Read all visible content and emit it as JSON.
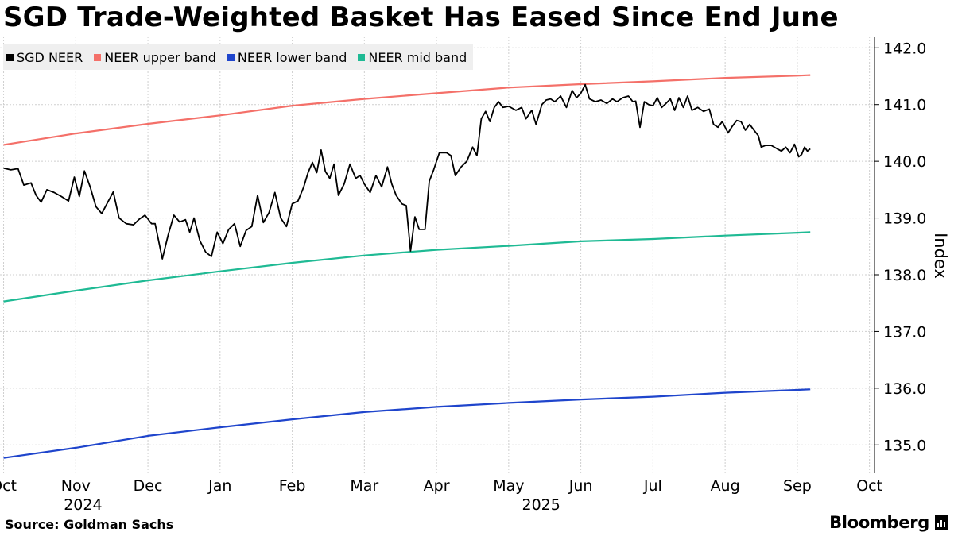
{
  "header": {
    "title": "SGD Trade-Weighted Basket Has Eased Since End June"
  },
  "footer": {
    "source": "Source: Goldman Sachs",
    "brand": "Bloomberg"
  },
  "chart_data": {
    "type": "line",
    "title": "SGD Trade-Weighted Basket Has Eased Since End June",
    "ylabel": "Index",
    "xlabel": "",
    "ylim": [
      134.5,
      142.2
    ],
    "yticks": [
      "135.0",
      "136.0",
      "137.0",
      "138.0",
      "139.0",
      "140.0",
      "141.0",
      "142.0"
    ],
    "x_range_months": [
      -0.05,
      12.07
    ],
    "xticks": [
      "Oct",
      "Nov",
      "Dec",
      "Jan",
      "Feb",
      "Mar",
      "Apr",
      "May",
      "Jun",
      "Jul",
      "Aug",
      "Sep",
      "Oct"
    ],
    "year_labels": [
      {
        "label": "2024",
        "month": 1.1
      },
      {
        "label": "2025",
        "month": 7.45
      }
    ],
    "grid": true,
    "legend_position": "top-left",
    "series": [
      {
        "name": "SGD NEER",
        "color": "#000000",
        "points": [
          [
            0.0,
            139.88
          ],
          [
            0.1,
            139.85
          ],
          [
            0.2,
            139.87
          ],
          [
            0.28,
            139.58
          ],
          [
            0.38,
            139.62
          ],
          [
            0.45,
            139.4
          ],
          [
            0.52,
            139.28
          ],
          [
            0.6,
            139.5
          ],
          [
            0.7,
            139.45
          ],
          [
            0.8,
            139.38
          ],
          [
            0.9,
            139.3
          ],
          [
            0.98,
            139.72
          ],
          [
            1.05,
            139.38
          ],
          [
            1.12,
            139.83
          ],
          [
            1.2,
            139.55
          ],
          [
            1.28,
            139.2
          ],
          [
            1.36,
            139.08
          ],
          [
            1.44,
            139.27
          ],
          [
            1.52,
            139.46
          ],
          [
            1.6,
            139.0
          ],
          [
            1.7,
            138.9
          ],
          [
            1.8,
            138.88
          ],
          [
            1.88,
            138.98
          ],
          [
            1.96,
            139.05
          ],
          [
            2.05,
            138.9
          ],
          [
            2.1,
            138.9
          ],
          [
            2.2,
            138.28
          ],
          [
            2.28,
            138.7
          ],
          [
            2.36,
            139.05
          ],
          [
            2.44,
            138.93
          ],
          [
            2.52,
            138.97
          ],
          [
            2.58,
            138.75
          ],
          [
            2.64,
            139.0
          ],
          [
            2.72,
            138.6
          ],
          [
            2.8,
            138.4
          ],
          [
            2.88,
            138.32
          ],
          [
            2.96,
            138.75
          ],
          [
            3.04,
            138.55
          ],
          [
            3.12,
            138.8
          ],
          [
            3.2,
            138.9
          ],
          [
            3.28,
            138.5
          ],
          [
            3.36,
            138.78
          ],
          [
            3.44,
            138.85
          ],
          [
            3.52,
            139.4
          ],
          [
            3.6,
            138.92
          ],
          [
            3.68,
            139.1
          ],
          [
            3.76,
            139.45
          ],
          [
            3.84,
            139.0
          ],
          [
            3.92,
            138.85
          ],
          [
            4.0,
            139.25
          ],
          [
            4.08,
            139.3
          ],
          [
            4.16,
            139.55
          ],
          [
            4.22,
            139.8
          ],
          [
            4.28,
            139.98
          ],
          [
            4.34,
            139.8
          ],
          [
            4.4,
            140.2
          ],
          [
            4.46,
            139.82
          ],
          [
            4.52,
            139.7
          ],
          [
            4.58,
            139.95
          ],
          [
            4.64,
            139.4
          ],
          [
            4.72,
            139.6
          ],
          [
            4.8,
            139.95
          ],
          [
            4.88,
            139.7
          ],
          [
            4.94,
            139.75
          ],
          [
            5.0,
            139.6
          ],
          [
            5.08,
            139.45
          ],
          [
            5.16,
            139.75
          ],
          [
            5.24,
            139.55
          ],
          [
            5.32,
            139.9
          ],
          [
            5.38,
            139.6
          ],
          [
            5.44,
            139.4
          ],
          [
            5.52,
            139.25
          ],
          [
            5.58,
            139.22
          ],
          [
            5.64,
            138.42
          ],
          [
            5.7,
            139.02
          ],
          [
            5.76,
            138.8
          ],
          [
            5.84,
            138.8
          ],
          [
            5.9,
            139.65
          ],
          [
            5.96,
            139.85
          ],
          [
            6.04,
            140.15
          ],
          [
            6.14,
            140.15
          ],
          [
            6.2,
            140.1
          ],
          [
            6.26,
            139.75
          ],
          [
            6.34,
            139.9
          ],
          [
            6.42,
            140.0
          ],
          [
            6.5,
            140.25
          ],
          [
            6.56,
            140.1
          ],
          [
            6.62,
            140.75
          ],
          [
            6.68,
            140.88
          ],
          [
            6.74,
            140.7
          ],
          [
            6.8,
            140.95
          ],
          [
            6.86,
            141.05
          ],
          [
            6.92,
            140.95
          ],
          [
            7.0,
            140.97
          ],
          [
            7.1,
            140.9
          ],
          [
            7.18,
            140.95
          ],
          [
            7.24,
            140.75
          ],
          [
            7.32,
            140.9
          ],
          [
            7.38,
            140.65
          ],
          [
            7.46,
            141.0
          ],
          [
            7.52,
            141.08
          ],
          [
            7.58,
            141.1
          ],
          [
            7.64,
            141.05
          ],
          [
            7.72,
            141.15
          ],
          [
            7.8,
            140.95
          ],
          [
            7.88,
            141.25
          ],
          [
            7.94,
            141.12
          ],
          [
            8.0,
            141.2
          ],
          [
            8.06,
            141.35
          ],
          [
            8.12,
            141.1
          ],
          [
            8.2,
            141.05
          ],
          [
            8.28,
            141.08
          ],
          [
            8.36,
            141.02
          ],
          [
            8.44,
            141.1
          ],
          [
            8.5,
            141.05
          ],
          [
            8.58,
            141.12
          ],
          [
            8.66,
            141.15
          ],
          [
            8.72,
            141.05
          ],
          [
            8.76,
            141.06
          ],
          [
            8.82,
            140.6
          ],
          [
            8.88,
            141.05
          ],
          [
            8.94,
            141.0
          ],
          [
            9.0,
            140.98
          ],
          [
            9.06,
            141.12
          ],
          [
            9.12,
            140.95
          ],
          [
            9.18,
            141.02
          ],
          [
            9.24,
            141.1
          ],
          [
            9.3,
            140.9
          ],
          [
            9.36,
            141.12
          ],
          [
            9.42,
            140.95
          ],
          [
            9.48,
            141.15
          ],
          [
            9.54,
            140.9
          ],
          [
            9.62,
            140.95
          ],
          [
            9.7,
            140.88
          ],
          [
            9.78,
            140.92
          ],
          [
            9.84,
            140.65
          ],
          [
            9.9,
            140.6
          ],
          [
            9.96,
            140.7
          ],
          [
            10.04,
            140.5
          ],
          [
            10.1,
            140.62
          ],
          [
            10.16,
            140.72
          ],
          [
            10.22,
            140.7
          ],
          [
            10.28,
            140.55
          ],
          [
            10.34,
            140.65
          ],
          [
            10.4,
            140.55
          ],
          [
            10.46,
            140.45
          ],
          [
            10.5,
            140.25
          ],
          [
            10.56,
            140.28
          ],
          [
            10.64,
            140.28
          ],
          [
            10.72,
            140.22
          ],
          [
            10.78,
            140.18
          ],
          [
            10.84,
            140.25
          ],
          [
            10.9,
            140.15
          ],
          [
            10.96,
            140.3
          ],
          [
            11.02,
            140.08
          ],
          [
            11.06,
            140.12
          ],
          [
            11.1,
            140.25
          ],
          [
            11.14,
            140.18
          ],
          [
            11.18,
            140.22
          ]
        ]
      },
      {
        "name": "NEER upper band",
        "color": "#f47069",
        "points": [
          [
            0.0,
            140.29
          ],
          [
            1.0,
            140.49
          ],
          [
            2.0,
            140.66
          ],
          [
            3.0,
            140.81
          ],
          [
            4.0,
            140.98
          ],
          [
            5.0,
            141.1
          ],
          [
            6.0,
            141.2
          ],
          [
            7.0,
            141.3
          ],
          [
            8.0,
            141.36
          ],
          [
            9.0,
            141.41
          ],
          [
            10.0,
            141.47
          ],
          [
            11.0,
            141.51
          ],
          [
            11.18,
            141.52
          ]
        ]
      },
      {
        "name": "NEER lower band",
        "color": "#1f45cc",
        "points": [
          [
            0.0,
            134.77
          ],
          [
            1.0,
            134.95
          ],
          [
            2.0,
            135.16
          ],
          [
            3.0,
            135.31
          ],
          [
            4.0,
            135.45
          ],
          [
            5.0,
            135.58
          ],
          [
            6.0,
            135.67
          ],
          [
            7.0,
            135.74
          ],
          [
            8.0,
            135.8
          ],
          [
            9.0,
            135.85
          ],
          [
            10.0,
            135.92
          ],
          [
            11.0,
            135.97
          ],
          [
            11.18,
            135.98
          ]
        ]
      },
      {
        "name": "NEER mid band",
        "color": "#1fba94",
        "points": [
          [
            0.0,
            137.53
          ],
          [
            1.0,
            137.72
          ],
          [
            2.0,
            137.9
          ],
          [
            3.0,
            138.06
          ],
          [
            4.0,
            138.21
          ],
          [
            5.0,
            138.34
          ],
          [
            6.0,
            138.44
          ],
          [
            7.0,
            138.51
          ],
          [
            8.0,
            138.59
          ],
          [
            9.0,
            138.63
          ],
          [
            10.0,
            138.69
          ],
          [
            11.0,
            138.74
          ],
          [
            11.18,
            138.75
          ]
        ]
      }
    ]
  }
}
